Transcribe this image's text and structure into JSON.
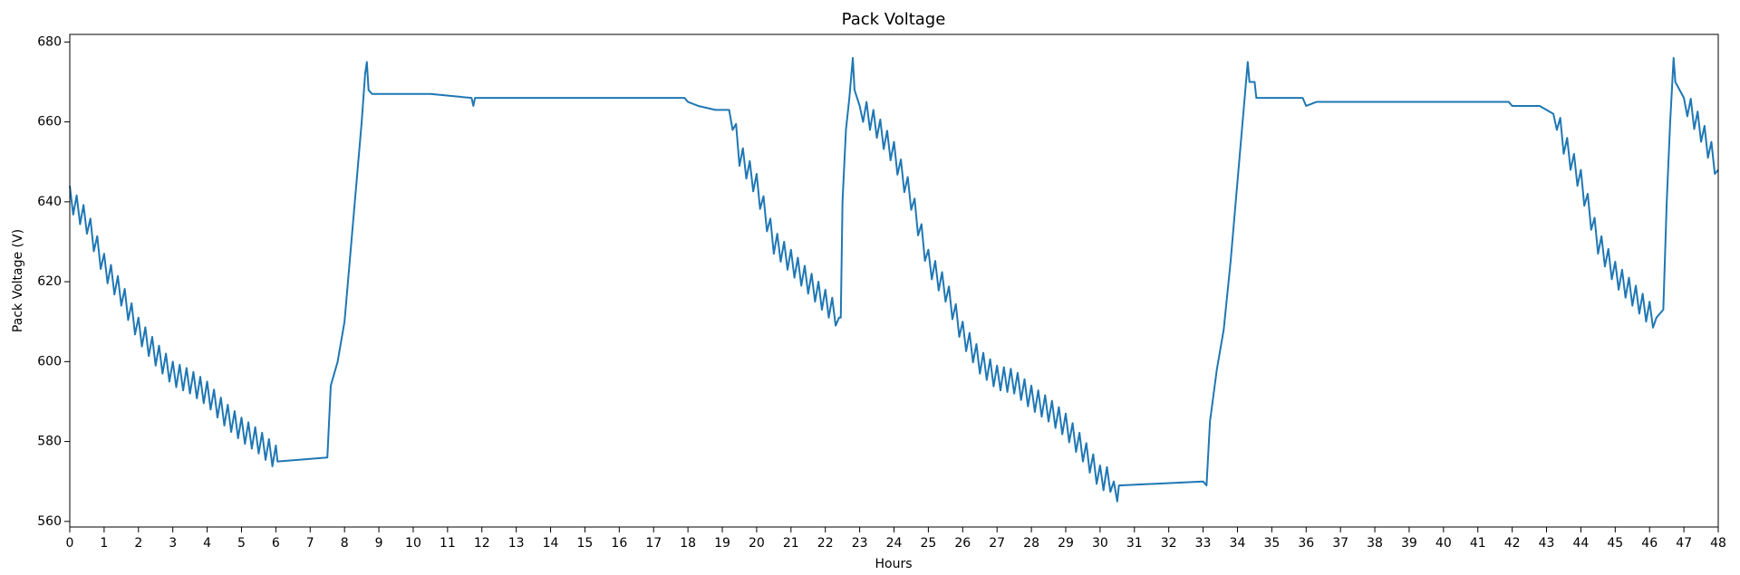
{
  "chart_data": {
    "type": "line",
    "title": "Pack Voltage",
    "x_label": "Hours",
    "y_label": "Pack Voltage (V)",
    "x": [
      0.0,
      0.1,
      0.2,
      0.3,
      0.4,
      0.5,
      0.6,
      0.7,
      0.8,
      0.9,
      1.0,
      1.1,
      1.2,
      1.3,
      1.4,
      1.5,
      1.6,
      1.7,
      1.8,
      1.9,
      2.0,
      2.1,
      2.2,
      2.3,
      2.4,
      2.5,
      2.6,
      2.7,
      2.8,
      2.9,
      3.0,
      3.1,
      3.2,
      3.3,
      3.4,
      3.5,
      3.6,
      3.7,
      3.8,
      3.9,
      4.0,
      4.1,
      4.2,
      4.3,
      4.4,
      4.5,
      4.6,
      4.7,
      4.8,
      4.9,
      5.0,
      5.1,
      5.2,
      5.3,
      5.4,
      5.5,
      5.6,
      5.7,
      5.8,
      5.9,
      6.0,
      6.05,
      7.5,
      7.55,
      7.6,
      7.8,
      8.0,
      8.2,
      8.4,
      8.5,
      8.6,
      8.65,
      8.7,
      8.8,
      10.5,
      11.7,
      11.75,
      11.8,
      17.9,
      18.0,
      18.3,
      18.8,
      19.2,
      19.3,
      19.4,
      19.5,
      19.6,
      19.7,
      19.8,
      19.9,
      20.0,
      20.1,
      20.2,
      20.3,
      20.4,
      20.5,
      20.6,
      20.7,
      20.8,
      20.9,
      21.0,
      21.1,
      21.2,
      21.3,
      21.4,
      21.5,
      21.6,
      21.7,
      21.8,
      21.9,
      22.0,
      22.1,
      22.2,
      22.3,
      22.4,
      22.45,
      22.5,
      22.6,
      22.7,
      22.8,
      22.85,
      23.0,
      23.1,
      23.2,
      23.3,
      23.4,
      23.5,
      23.6,
      23.7,
      23.8,
      23.9,
      24.0,
      24.1,
      24.2,
      24.3,
      24.4,
      24.5,
      24.6,
      24.7,
      24.8,
      24.9,
      25.0,
      25.1,
      25.2,
      25.3,
      25.4,
      25.5,
      25.6,
      25.7,
      25.8,
      25.9,
      26.0,
      26.1,
      26.2,
      26.3,
      26.4,
      26.5,
      26.6,
      26.7,
      26.8,
      26.9,
      27.0,
      27.1,
      27.2,
      27.3,
      27.4,
      27.5,
      27.6,
      27.7,
      27.8,
      27.9,
      28.0,
      28.1,
      28.2,
      28.3,
      28.4,
      28.5,
      28.6,
      28.7,
      28.8,
      28.9,
      29.0,
      29.1,
      29.2,
      29.3,
      29.4,
      29.5,
      29.6,
      29.7,
      29.8,
      29.9,
      30.0,
      30.1,
      30.2,
      30.3,
      30.4,
      30.5,
      30.55,
      33.0,
      33.1,
      33.2,
      33.4,
      33.6,
      33.8,
      34.0,
      34.2,
      34.3,
      34.35,
      34.5,
      34.55,
      35.9,
      36.0,
      36.3,
      41.9,
      42.0,
      42.8,
      43.2,
      43.3,
      43.4,
      43.5,
      43.6,
      43.7,
      43.8,
      43.9,
      44.0,
      44.1,
      44.2,
      44.3,
      44.4,
      44.5,
      44.6,
      44.7,
      44.8,
      44.9,
      45.0,
      45.1,
      45.2,
      45.3,
      45.4,
      45.5,
      45.6,
      45.7,
      45.8,
      45.9,
      46.0,
      46.1,
      46.2,
      46.3,
      46.4,
      46.5,
      46.6,
      46.7,
      46.75,
      47.0,
      47.1,
      47.2,
      47.3,
      47.4,
      47.5,
      47.6,
      47.7,
      47.8,
      47.9,
      48.0
    ],
    "series": [
      {
        "name": "Pack Voltage",
        "color": "#1f77b4",
        "values": [
          644,
          636.8,
          641.6,
          634.4,
          639.2,
          632,
          635.8,
          627.6,
          631.4,
          623.2,
          627,
          619.6,
          624.2,
          616.8,
          621.4,
          614,
          618.2,
          610.4,
          614.6,
          606.8,
          611,
          603.8,
          608.6,
          601.4,
          606.2,
          599,
          604,
          597,
          602,
          595,
          600,
          593.6,
          599.2,
          592.8,
          598.4,
          592,
          597.4,
          590.8,
          596.2,
          589.6,
          595,
          588,
          593,
          586,
          591,
          584,
          589.2,
          582.4,
          587.6,
          580.8,
          586,
          579.4,
          584.8,
          578.2,
          583.6,
          577,
          582.2,
          575.4,
          580.6,
          573.8,
          579,
          575,
          576,
          585,
          594,
          600,
          610,
          630,
          650,
          660,
          672,
          675,
          668,
          667,
          667,
          666,
          664,
          666,
          666,
          665,
          664,
          663,
          663,
          658,
          659.5,
          649,
          653.4,
          645.8,
          650.2,
          642.6,
          647,
          638.2,
          641.4,
          632.6,
          635.8,
          627,
          632,
          625,
          630,
          623,
          628,
          621,
          626,
          619,
          624,
          617,
          622,
          615,
          620,
          613,
          618,
          611,
          616,
          609,
          611,
          611,
          640,
          658,
          666,
          676,
          668,
          664,
          660,
          665,
          658,
          663,
          656,
          660.6,
          653.2,
          657.8,
          650.4,
          655,
          646.8,
          650.6,
          642.4,
          646.2,
          638,
          640.8,
          631.6,
          634.4,
          625.2,
          628,
          620.6,
          625.2,
          617.8,
          622.4,
          615,
          618.8,
          610.6,
          614.4,
          606.2,
          610,
          602.6,
          607.2,
          599.8,
          604.4,
          597,
          602.2,
          595.4,
          600.6,
          593.8,
          599,
          592.8,
          598.6,
          592.4,
          598.2,
          592,
          597.2,
          590.4,
          595.6,
          588.8,
          594,
          587.4,
          592.8,
          586.2,
          591.6,
          585,
          590.2,
          583.4,
          588.6,
          581.8,
          587,
          579.8,
          584.6,
          577.4,
          582.2,
          575,
          579.6,
          572.2,
          576.8,
          569.4,
          574,
          567.8,
          573.6,
          567.4,
          570,
          565,
          569,
          570,
          569,
          585,
          598,
          608,
          625,
          645,
          665,
          675,
          670,
          670,
          666,
          666,
          664,
          665,
          665,
          664,
          664,
          662,
          658,
          661,
          652,
          656,
          648,
          652,
          644,
          648,
          639,
          642,
          633,
          636,
          627,
          631.4,
          623.8,
          628.2,
          620.6,
          625,
          618,
          623,
          616,
          621,
          614,
          619,
          612,
          617,
          610,
          615,
          608.5,
          611,
          612,
          613,
          640,
          660,
          676,
          670,
          666,
          661.4,
          665.8,
          658.2,
          662.6,
          655,
          659,
          651,
          655,
          647,
          648
        ]
      }
    ],
    "xlim": [
      0,
      48
    ],
    "ylim": [
      558.6,
      681.9
    ],
    "xticks": [
      0,
      1,
      2,
      3,
      4,
      5,
      6,
      7,
      8,
      9,
      10,
      11,
      12,
      13,
      14,
      15,
      16,
      17,
      18,
      19,
      20,
      21,
      22,
      23,
      24,
      25,
      26,
      27,
      28,
      29,
      30,
      31,
      32,
      33,
      34,
      35,
      36,
      37,
      38,
      39,
      40,
      41,
      42,
      43,
      44,
      45,
      46,
      47,
      48
    ],
    "yticks": [
      560,
      580,
      600,
      620,
      640,
      660,
      680
    ],
    "grid": false
  }
}
